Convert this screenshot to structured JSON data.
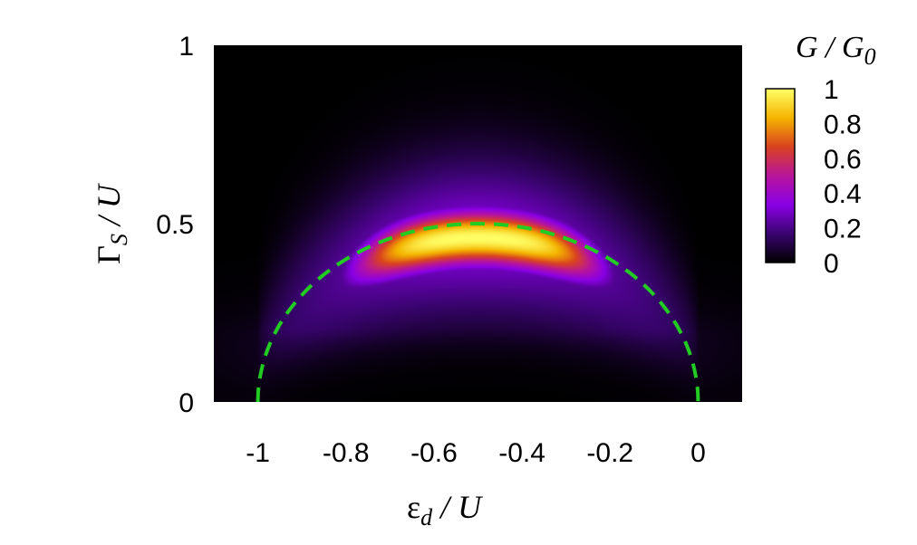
{
  "chart_data": {
    "type": "heatmap",
    "title": "",
    "xlabel": {
      "base": "ε",
      "sub": "d",
      "rest": " / U"
    },
    "ylabel": {
      "base": "Γ",
      "sub": "S",
      "rest": " / U"
    },
    "xlim": [
      -1.1,
      0.1
    ],
    "ylim": [
      0,
      1
    ],
    "x_ticks": [
      -1,
      -0.8,
      -0.6,
      -0.4,
      -0.2,
      0
    ],
    "x_tick_labels": [
      "-1",
      "-0.8",
      "-0.6",
      "-0.4",
      "-0.2",
      "0"
    ],
    "y_ticks": [
      0,
      0.5,
      1
    ],
    "y_tick_labels": [
      "0",
      "0.5",
      "1"
    ],
    "colorbar": {
      "title": {
        "base": "G / G",
        "sub": "0"
      },
      "range": [
        0,
        1
      ],
      "ticks": [
        0,
        0.2,
        0.4,
        0.6,
        0.8,
        1
      ],
      "tick_labels": [
        "0",
        "0.2",
        "0.4",
        "0.6",
        "0.8",
        "1"
      ],
      "colormap": [
        "#000000",
        "#3a0470",
        "#8a00e6",
        "#b8159a",
        "#d9431f",
        "#f4b400",
        "#ffff66"
      ]
    },
    "field": {
      "description_of_peak": "conductance maximum (G/G0 ≈ 1) along ridge near ΓS/U ≈ 0.47 at εd/U ≈ -0.5, ridge follows arc from (-0.9, 0.33) to (-0.15, 0.33)",
      "peak_value": 1.0,
      "ridge_center_x": -0.5,
      "ridge_center_y": 0.47,
      "ridge_radius": 0.5,
      "ridge_y_offset": -0.04,
      "ridge_width": 0.055,
      "halo_width": 0.16,
      "x_extent_sigma": 0.28
    },
    "overlay": {
      "type": "dashed-curve",
      "color": "#22cc22",
      "equation": "ΓS/U = sqrt((εd/U + 0.5)^2 ... ) semicircle",
      "center_x": -0.5,
      "radius": 0.5,
      "points_x": [
        -1,
        -0.9,
        -0.8,
        -0.7,
        -0.6,
        -0.5,
        -0.4,
        -0.3,
        -0.2,
        -0.1,
        0
      ],
      "points_y": [
        0,
        0.3,
        0.4,
        0.458,
        0.49,
        0.5,
        0.49,
        0.458,
        0.4,
        0.3,
        0
      ]
    }
  }
}
